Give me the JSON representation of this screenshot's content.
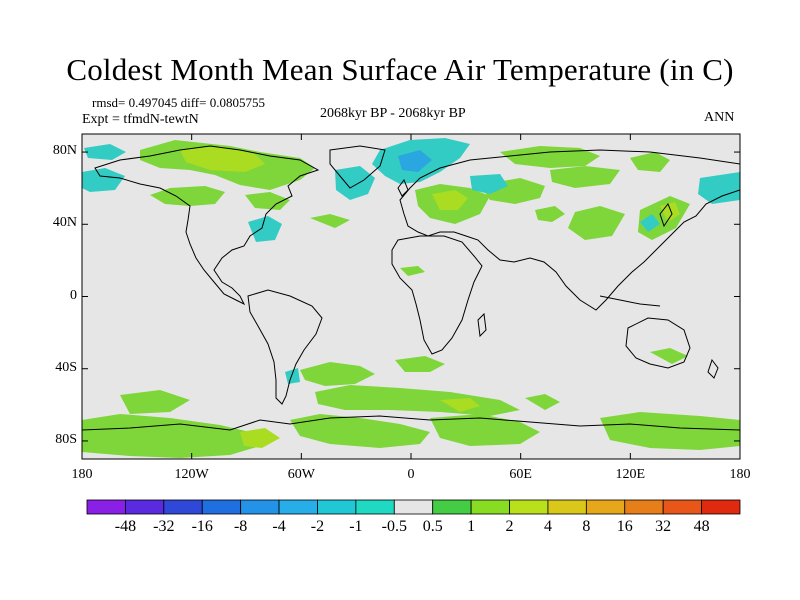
{
  "title": "Coldest Month Mean Surface Air Temperature (in C)",
  "stats": "rmsd= 0.497045  diff= 0.0805755",
  "experiment": "Expt = tfmdN-tewtN",
  "period": "2068kyr BP - 2068kyr BP",
  "season": "ANN",
  "axes": {
    "lat_labels": [
      "80N",
      "40N",
      "0",
      "40S",
      "80S"
    ],
    "lon_labels": [
      "180",
      "120W",
      "60W",
      "0",
      "60E",
      "120E",
      "180"
    ],
    "lat_values": [
      80,
      40,
      0,
      -40,
      -80
    ],
    "lon_values": [
      -180,
      -120,
      -60,
      0,
      60,
      120,
      180
    ],
    "lon_range": [
      -180,
      180
    ],
    "lat_range": [
      -90,
      90
    ]
  },
  "colorbar": {
    "labels": [
      "-48",
      "-32",
      "-16",
      "-8",
      "-4",
      "-2",
      "-1",
      "-0.5",
      "0.5",
      "1",
      "2",
      "4",
      "8",
      "16",
      "32",
      "48"
    ],
    "colors": [
      "#8a1fe6",
      "#5a2ae0",
      "#2f48d8",
      "#1f6fe0",
      "#2492e6",
      "#27aee8",
      "#22c7d6",
      "#20d9c2",
      "#e6e6e6",
      "#44cc44",
      "#88dd22",
      "#b9e01a",
      "#d9c81a",
      "#e6a81a",
      "#e67e1a",
      "#e8561a",
      "#e02a10"
    ]
  },
  "colors": {
    "background": "#e6e6e6",
    "warm_light": "#7ed63a",
    "warm_mid": "#aadd22",
    "cool_light": "#33ccc4",
    "cool_mid": "#2aa6e0"
  }
}
